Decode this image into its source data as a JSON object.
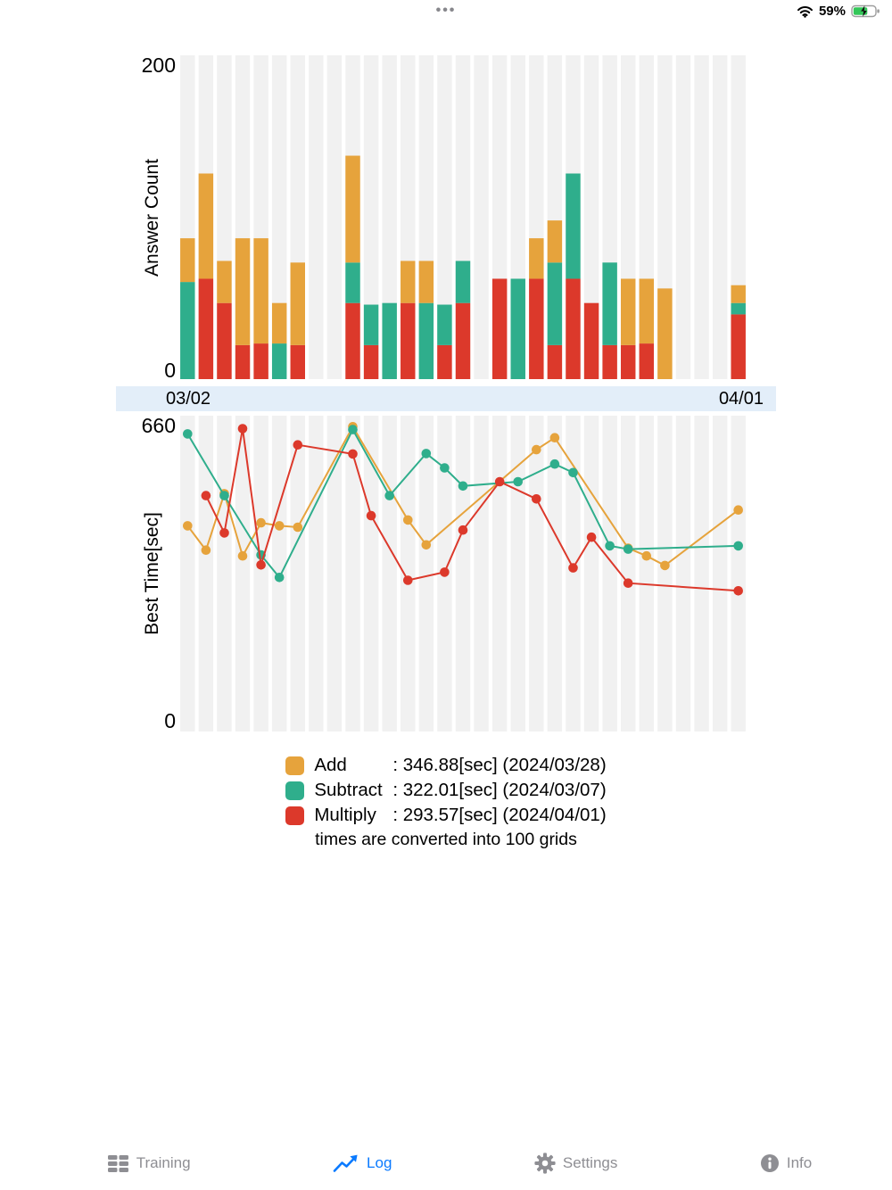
{
  "status_bar": {
    "more_indicator": "•••",
    "battery_percent": "59%",
    "battery_state": "charging"
  },
  "answer_chart": {
    "ylabel": "Answer Count",
    "y_max_label": "200",
    "y_min_label": "0"
  },
  "date_axis": {
    "start_label": "03/02",
    "end_label": "04/01"
  },
  "time_chart": {
    "ylabel": "Best Time[sec]",
    "y_max_label": "660",
    "y_min_label": "0"
  },
  "legend": {
    "items": [
      {
        "name": "Add",
        "detail": ": 346.88[sec] (2024/03/28)",
        "color": "#E6A33C"
      },
      {
        "name": "Subtract",
        "detail": ": 322.01[sec] (2024/03/07)",
        "color": "#2FAE8C"
      },
      {
        "name": "Multiply",
        "detail": ": 293.57[sec] (2024/04/01)",
        "color": "#DC392B"
      }
    ],
    "note": "times are converted into 100 grids"
  },
  "tab_bar": {
    "active_color": "#0A7AFF",
    "inactive_color": "#8E8E93",
    "items": [
      {
        "label": "Training",
        "icon": "training-grid-icon",
        "active": false
      },
      {
        "label": "Log",
        "icon": "log-line-chart-icon",
        "active": true
      },
      {
        "label": "Settings",
        "icon": "gear-icon",
        "active": false
      },
      {
        "label": "Info",
        "icon": "info-icon",
        "active": false
      }
    ]
  },
  "colors": {
    "date_band_bg": "#E3EEF9",
    "stripe": "#F1F1F1",
    "add": "#E6A33C",
    "subtract": "#2FAE8C",
    "multiply": "#DC392B"
  },
  "chart_data": [
    {
      "type": "bar",
      "stacked": true,
      "ylabel": "Answer Count",
      "ylim": [
        0,
        200
      ],
      "x_start": "03/02",
      "x_end": "04/01",
      "num_slots": 31,
      "background_stripe_color": "#F1F1F1",
      "stack_order_bottom_to_top": [
        "Multiply",
        "Subtract",
        "Add"
      ],
      "colors": {
        "Add": "#E6A33C",
        "Subtract": "#2FAE8C",
        "Multiply": "#DC392B"
      },
      "bars": [
        {
          "day": 0,
          "date": "03/02",
          "Add": 27,
          "Subtract": 60,
          "Multiply": 0
        },
        {
          "day": 1,
          "date": "03/03",
          "Add": 65,
          "Subtract": 0,
          "Multiply": 62
        },
        {
          "day": 2,
          "date": "03/04",
          "Add": 26,
          "Subtract": 0,
          "Multiply": 47
        },
        {
          "day": 3,
          "date": "03/05",
          "Add": 66,
          "Subtract": 0,
          "Multiply": 21
        },
        {
          "day": 4,
          "date": "03/06",
          "Add": 65,
          "Subtract": 0,
          "Multiply": 22
        },
        {
          "day": 5,
          "date": "03/07",
          "Add": 25,
          "Subtract": 22,
          "Multiply": 0
        },
        {
          "day": 6,
          "date": "03/08",
          "Add": 51,
          "Subtract": 0,
          "Multiply": 21
        },
        {
          "day": 9,
          "date": "03/11",
          "Add": 66,
          "Subtract": 25,
          "Multiply": 47
        },
        {
          "day": 10,
          "date": "03/12",
          "Add": 0,
          "Subtract": 25,
          "Multiply": 21
        },
        {
          "day": 11,
          "date": "03/13",
          "Add": 0,
          "Subtract": 47,
          "Multiply": 0
        },
        {
          "day": 12,
          "date": "03/14",
          "Add": 26,
          "Subtract": 0,
          "Multiply": 47
        },
        {
          "day": 13,
          "date": "03/15",
          "Add": 26,
          "Subtract": 47,
          "Multiply": 0
        },
        {
          "day": 14,
          "date": "03/16",
          "Add": 0,
          "Subtract": 25,
          "Multiply": 21
        },
        {
          "day": 15,
          "date": "03/17",
          "Add": 0,
          "Subtract": 26,
          "Multiply": 47
        },
        {
          "day": 17,
          "date": "03/19",
          "Add": 0,
          "Subtract": 0,
          "Multiply": 62
        },
        {
          "day": 18,
          "date": "03/20",
          "Add": 0,
          "Subtract": 62,
          "Multiply": 0
        },
        {
          "day": 19,
          "date": "03/21",
          "Add": 25,
          "Subtract": 0,
          "Multiply": 62
        },
        {
          "day": 20,
          "date": "03/22",
          "Add": 26,
          "Subtract": 51,
          "Multiply": 21
        },
        {
          "day": 21,
          "date": "03/23",
          "Add": 0,
          "Subtract": 65,
          "Multiply": 62
        },
        {
          "day": 22,
          "date": "03/24",
          "Add": 0,
          "Subtract": 0,
          "Multiply": 47
        },
        {
          "day": 23,
          "date": "03/25",
          "Add": 0,
          "Subtract": 51,
          "Multiply": 21
        },
        {
          "day": 24,
          "date": "03/26",
          "Add": 41,
          "Subtract": 0,
          "Multiply": 21
        },
        {
          "day": 25,
          "date": "03/27",
          "Add": 40,
          "Subtract": 0,
          "Multiply": 22
        },
        {
          "day": 26,
          "date": "03/28",
          "Add": 56,
          "Subtract": 0,
          "Multiply": 0
        },
        {
          "day": 30,
          "date": "04/01",
          "Add": 11,
          "Subtract": 7,
          "Multiply": 40
        }
      ]
    },
    {
      "type": "line",
      "ylabel": "Best Time[sec]",
      "ylim": [
        0,
        660
      ],
      "num_slots": 31,
      "background_stripe_color": "#F1F1F1",
      "series": [
        {
          "name": "Add",
          "color": "#E6A33C",
          "points": [
            [
              0,
              430
            ],
            [
              1,
              379
            ],
            [
              2,
              497
            ],
            [
              3,
              367
            ],
            [
              4,
              436
            ],
            [
              5,
              430
            ],
            [
              6,
              427
            ],
            [
              9,
              637
            ],
            [
              12,
              442
            ],
            [
              13,
              390
            ],
            [
              19,
              589
            ],
            [
              20,
              614
            ],
            [
              24,
              383
            ],
            [
              25,
              367
            ],
            [
              26,
              347
            ],
            [
              30,
              463
            ]
          ]
        },
        {
          "name": "Subtract",
          "color": "#2FAE8C",
          "points": [
            [
              0,
              622
            ],
            [
              2,
              493
            ],
            [
              4,
              369
            ],
            [
              5,
              322
            ],
            [
              9,
              631
            ],
            [
              11,
              493
            ],
            [
              13,
              581
            ],
            [
              14,
              551
            ],
            [
              15,
              513
            ],
            [
              18,
              522
            ],
            [
              20,
              559
            ],
            [
              21,
              541
            ],
            [
              23,
              388
            ],
            [
              24,
              381
            ],
            [
              30,
              388
            ]
          ]
        },
        {
          "name": "Multiply",
          "color": "#DC392B",
          "points": [
            [
              1,
              493
            ],
            [
              2,
              415
            ],
            [
              3,
              633
            ],
            [
              4,
              348
            ],
            [
              6,
              599
            ],
            [
              9,
              580
            ],
            [
              10,
              451
            ],
            [
              12,
              316
            ],
            [
              14,
              333
            ],
            [
              15,
              421
            ],
            [
              17,
              522
            ],
            [
              19,
              486
            ],
            [
              21,
              342
            ],
            [
              22,
              406
            ],
            [
              24,
              310
            ],
            [
              30,
              294
            ]
          ]
        }
      ]
    }
  ]
}
